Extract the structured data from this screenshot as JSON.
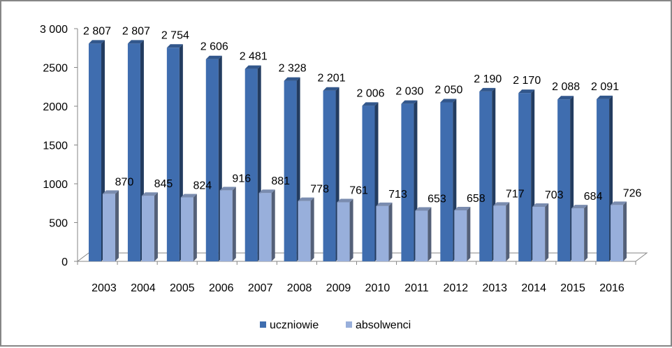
{
  "chart_data": {
    "type": "bar",
    "categories": [
      "2003",
      "2004",
      "2005",
      "2006",
      "2007",
      "2008",
      "2009",
      "2010",
      "2011",
      "2012",
      "2013",
      "2014",
      "2015",
      "2016"
    ],
    "series": [
      {
        "name": "uczniowie",
        "values": [
          2807,
          2807,
          2754,
          2606,
          2481,
          2328,
          2201,
          2006,
          2030,
          2050,
          2190,
          2170,
          2088,
          2091
        ],
        "labels": [
          "2 807",
          "2 807",
          "2 754",
          "2 606",
          "2 481",
          "2 328",
          "2 201",
          "2 006",
          "2 030",
          "2 050",
          "2 190",
          "2 170",
          "2 088",
          "2 091"
        ],
        "color": "#3F6DAF"
      },
      {
        "name": "absolwenci",
        "values": [
          870,
          845,
          824,
          916,
          881,
          778,
          761,
          713,
          653,
          658,
          717,
          703,
          684,
          726
        ],
        "labels": [
          "870",
          "845",
          "824",
          "916",
          "881",
          "778",
          "761",
          "713",
          "653",
          "658",
          "717",
          "703",
          "684",
          "726"
        ],
        "color": "#98AFDB"
      }
    ],
    "yticks": [
      "0",
      "500",
      "1000",
      "1500",
      "2000",
      "2500",
      "3 000"
    ],
    "ylim": [
      0,
      3000
    ],
    "title": "",
    "xlabel": "",
    "ylabel": "",
    "legend_position": "bottom",
    "grid": false,
    "three_d": true
  }
}
